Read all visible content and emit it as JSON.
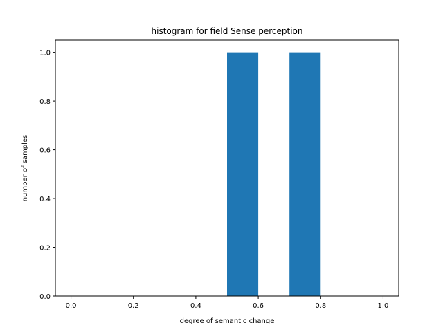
{
  "chart_data": {
    "type": "bar",
    "title": "histogram for field Sense perception",
    "xlabel": "degree of semantic change",
    "ylabel": "number of samples",
    "xlim": [
      -0.05,
      1.05
    ],
    "ylim": [
      0.0,
      1.05
    ],
    "x_ticks": [
      "0.0",
      "0.2",
      "0.4",
      "0.6",
      "0.8",
      "1.0"
    ],
    "y_ticks": [
      "0.0",
      "0.2",
      "0.4",
      "0.6",
      "0.8",
      "1.0"
    ],
    "bins": [
      {
        "start": 0.0,
        "end": 0.1,
        "count": 0
      },
      {
        "start": 0.1,
        "end": 0.2,
        "count": 0
      },
      {
        "start": 0.2,
        "end": 0.3,
        "count": 0
      },
      {
        "start": 0.3,
        "end": 0.4,
        "count": 0
      },
      {
        "start": 0.4,
        "end": 0.5,
        "count": 0
      },
      {
        "start": 0.5,
        "end": 0.6,
        "count": 1
      },
      {
        "start": 0.6,
        "end": 0.7,
        "count": 0
      },
      {
        "start": 0.7,
        "end": 0.8,
        "count": 1
      },
      {
        "start": 0.8,
        "end": 0.9,
        "count": 0
      },
      {
        "start": 0.9,
        "end": 1.0,
        "count": 0
      }
    ],
    "bar_color": "#1f77b4",
    "grid": false,
    "legend": "none"
  }
}
